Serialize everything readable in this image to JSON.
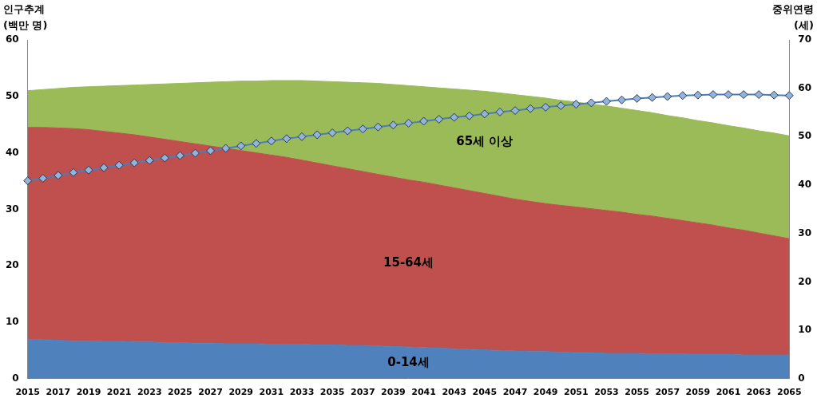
{
  "chart_data": {
    "type": "area",
    "stacked": true,
    "grid": false,
    "legend": "upper right",
    "ylabel": [
      "인구추계",
      "(백만 명)"
    ],
    "y2label": [
      "중위연령",
      "(세)"
    ],
    "categories": [
      "2015",
      null,
      "2017",
      null,
      "2019",
      null,
      "2021",
      null,
      "2023",
      null,
      "2025",
      null,
      "2027",
      null,
      "2029",
      null,
      "2031",
      null,
      "2033",
      null,
      "2035",
      null,
      "2037",
      null,
      "2039",
      null,
      "2041",
      null,
      "2043",
      null,
      "2045",
      null,
      "2047",
      null,
      "2049",
      null,
      "2051",
      null,
      "2053",
      null,
      "2055",
      null,
      "2057",
      null,
      "2059",
      null,
      "2061",
      null,
      "2063",
      null,
      "2065"
    ],
    "ylim": [
      0,
      60
    ],
    "yticks": [
      0,
      10,
      20,
      30,
      40,
      50,
      60
    ],
    "y2lim": [
      0,
      70
    ],
    "y2ticks": [
      0,
      10,
      20,
      30,
      40,
      50,
      60,
      70
    ],
    "series": [
      {
        "name": "0-14세",
        "type": "area",
        "color": "#4f81bd",
        "values": [
          7.0,
          6.9,
          6.8,
          6.7,
          6.7,
          6.6,
          6.6,
          6.5,
          6.5,
          6.4,
          6.4,
          6.3,
          6.3,
          6.2,
          6.2,
          6.2,
          6.1,
          6.1,
          6.1,
          6.0,
          6.0,
          5.9,
          5.9,
          5.8,
          5.7,
          5.6,
          5.5,
          5.4,
          5.3,
          5.2,
          5.1,
          5.0,
          4.9,
          4.8,
          4.8,
          4.7,
          4.6,
          4.6,
          4.5,
          4.5,
          4.5,
          4.4,
          4.4,
          4.4,
          4.3,
          4.3,
          4.3,
          4.2,
          4.2,
          4.2,
          4.2
        ]
      },
      {
        "name": "15-64세",
        "type": "area",
        "color": "#c0504d",
        "values": [
          37.5,
          37.6,
          37.6,
          37.6,
          37.4,
          37.2,
          36.9,
          36.7,
          36.3,
          36.0,
          35.6,
          35.3,
          34.9,
          34.6,
          34.2,
          33.8,
          33.5,
          33.1,
          32.6,
          32.2,
          31.7,
          31.3,
          30.8,
          30.4,
          30.0,
          29.6,
          29.3,
          28.9,
          28.5,
          28.1,
          27.7,
          27.3,
          26.9,
          26.6,
          26.2,
          26.0,
          25.8,
          25.5,
          25.3,
          25.0,
          24.6,
          24.4,
          24.0,
          23.6,
          23.3,
          22.9,
          22.4,
          22.1,
          21.6,
          21.1,
          20.6
        ]
      },
      {
        "name": "65세 이상",
        "type": "area",
        "color": "#9bbb59",
        "values": [
          6.5,
          6.7,
          7.0,
          7.3,
          7.6,
          8.0,
          8.4,
          8.8,
          9.3,
          9.8,
          10.3,
          10.8,
          11.3,
          11.8,
          12.3,
          12.7,
          13.2,
          13.6,
          14.1,
          14.5,
          14.9,
          15.3,
          15.7,
          16.1,
          16.4,
          16.7,
          16.9,
          17.2,
          17.5,
          17.8,
          18.1,
          18.3,
          18.5,
          18.6,
          18.7,
          18.6,
          18.6,
          18.5,
          18.5,
          18.4,
          18.4,
          18.3,
          18.2,
          18.2,
          18.1,
          18.1,
          18.1,
          18.1,
          18.1,
          18.2,
          18.2
        ]
      },
      {
        "name": "중위연령(세)",
        "type": "line",
        "axis": "y2",
        "marker": "diamond",
        "color": "#4a7ebb",
        "values": [
          40.9,
          41.4,
          42.0,
          42.6,
          43.1,
          43.6,
          44.1,
          44.6,
          45.1,
          45.6,
          46.1,
          46.6,
          47.1,
          47.6,
          48.1,
          48.6,
          49.1,
          49.6,
          50.0,
          50.4,
          50.8,
          51.2,
          51.6,
          52.0,
          52.4,
          52.8,
          53.2,
          53.6,
          54.0,
          54.3,
          54.7,
          55.1,
          55.4,
          55.8,
          56.1,
          56.4,
          56.7,
          57.0,
          57.3,
          57.6,
          57.9,
          58.1,
          58.3,
          58.5,
          58.6,
          58.7,
          58.7,
          58.7,
          58.7,
          58.6,
          58.5
        ]
      }
    ]
  }
}
